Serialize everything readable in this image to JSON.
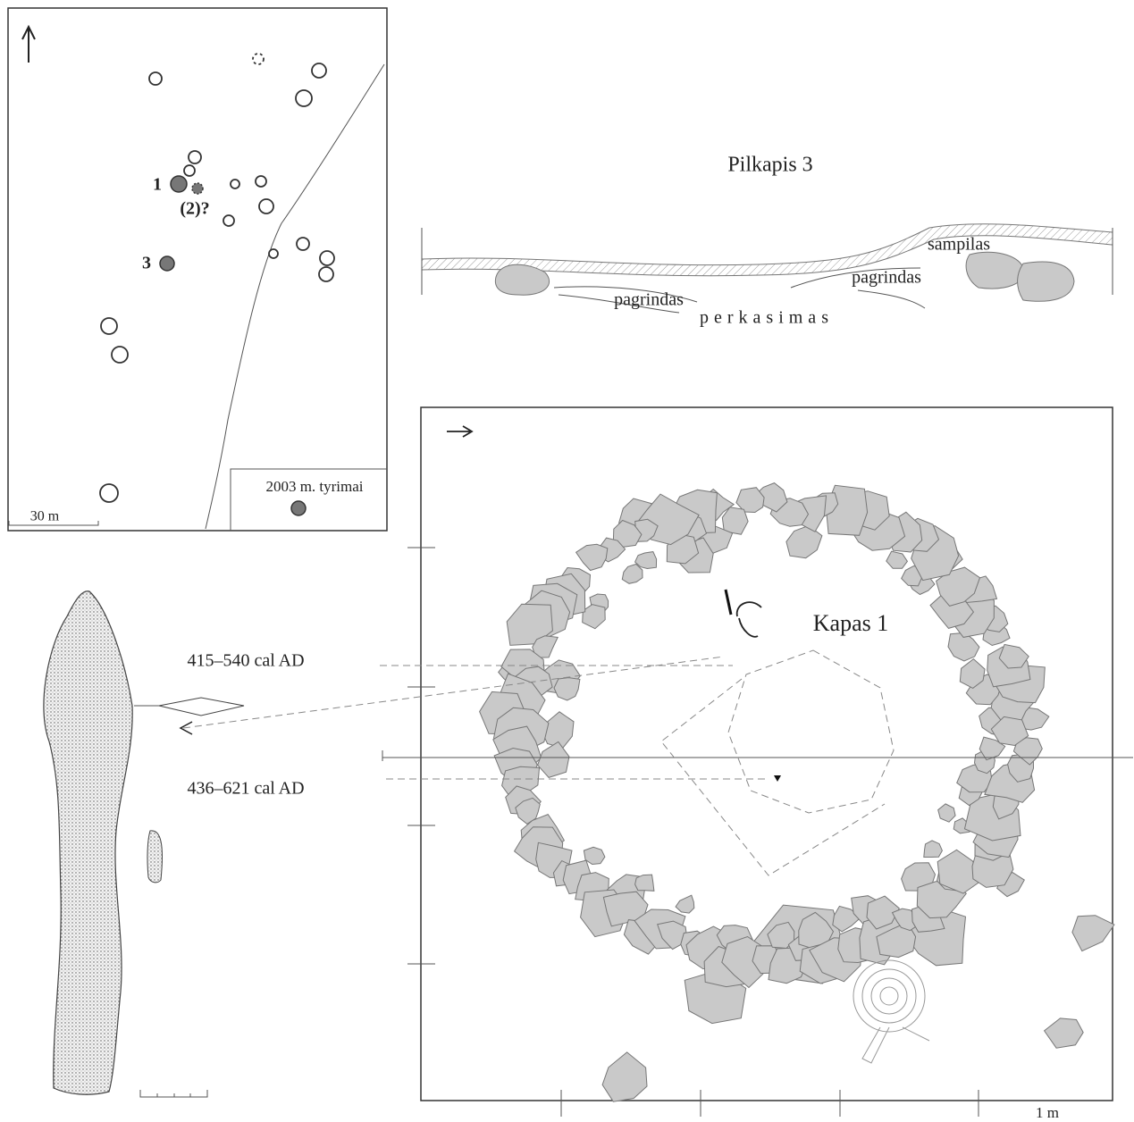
{
  "map": {
    "labels": [
      "1",
      "(2)?",
      "3"
    ],
    "legend": "2003 m. tyrimai",
    "scale": "30 m"
  },
  "section": {
    "title": "Pilkapis 3",
    "labels": [
      "sampilas",
      "pagrindas",
      "pagrindas"
    ],
    "trench": "perkasimas"
  },
  "plan": {
    "title": "Kapas 1",
    "scale": "1 m"
  },
  "dates": [
    "415–540 cal AD",
    "436–621 cal AD"
  ]
}
